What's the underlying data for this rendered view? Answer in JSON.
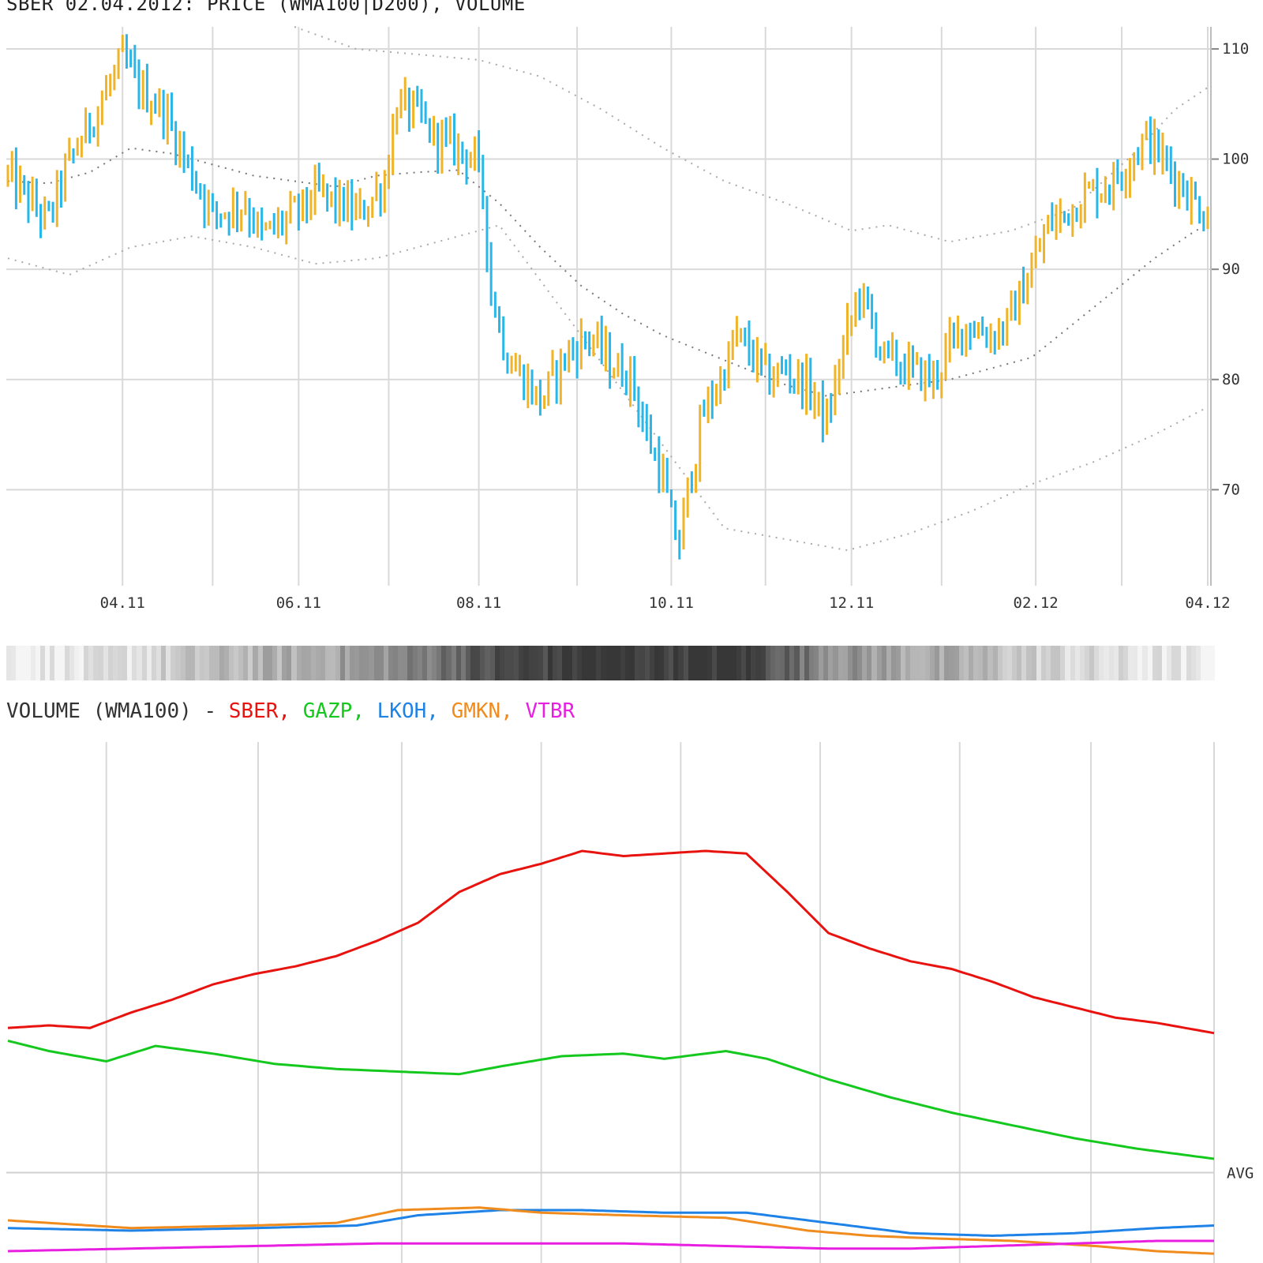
{
  "chart_title": "SBER 02.04.2012: PRICE (WMA100|D200), VOLUME",
  "chart_data": [
    {
      "type": "bar",
      "name": "price",
      "ylim": [
        61,
        111
      ],
      "y_ticks": [
        70,
        80,
        90,
        100,
        110
      ],
      "y_tick_labels": [
        "70",
        "80",
        "90",
        "100",
        "110"
      ],
      "x_tick_labels": [
        "04.11",
        "06.11",
        "08.11",
        "10.11",
        "12.11",
        "02.12",
        "04.12"
      ],
      "x_tick_index": [
        28,
        71,
        115,
        162,
        206,
        251,
        293
      ],
      "x_minor_index": [
        50,
        93,
        139,
        185,
        228,
        272
      ],
      "n_bars": 294,
      "grid": true,
      "up_color": "#f0b429",
      "down_color": "#29b6e8",
      "price_path": [
        [
          0,
          98.5
        ],
        [
          8,
          95
        ],
        [
          10,
          94.5
        ],
        [
          14,
          99
        ],
        [
          28,
          109
        ],
        [
          33,
          106
        ],
        [
          38,
          104.5
        ],
        [
          42,
          101
        ],
        [
          46,
          98
        ],
        [
          50,
          95
        ],
        [
          58,
          96
        ],
        [
          62,
          93
        ],
        [
          70,
          95
        ],
        [
          76,
          97
        ],
        [
          80,
          96
        ],
        [
          86,
          95
        ],
        [
          92,
          98
        ],
        [
          95,
          105
        ],
        [
          100,
          104
        ],
        [
          104,
          102
        ],
        [
          110,
          101
        ],
        [
          114,
          100
        ],
        [
          116,
          97
        ],
        [
          118,
          88
        ],
        [
          122,
          82
        ],
        [
          130,
          78
        ],
        [
          136,
          82
        ],
        [
          142,
          84
        ],
        [
          148,
          81
        ],
        [
          152,
          80.5
        ],
        [
          156,
          75
        ],
        [
          160,
          71
        ],
        [
          162,
          67
        ],
        [
          164,
          65
        ],
        [
          166,
          70
        ],
        [
          170,
          77
        ],
        [
          174,
          80
        ],
        [
          178,
          84
        ],
        [
          182,
          82
        ],
        [
          186,
          80
        ],
        [
          190,
          81
        ],
        [
          196,
          79
        ],
        [
          200,
          76
        ],
        [
          204,
          83
        ],
        [
          208,
          88
        ],
        [
          214,
          82
        ],
        [
          220,
          81
        ],
        [
          226,
          80
        ],
        [
          230,
          83
        ],
        [
          234,
          85
        ],
        [
          240,
          84
        ],
        [
          244,
          85
        ],
        [
          250,
          90
        ],
        [
          254,
          94
        ],
        [
          258,
          95
        ],
        [
          264,
          97
        ],
        [
          270,
          98
        ],
        [
          274,
          100
        ],
        [
          278,
          102
        ],
        [
          282,
          100
        ],
        [
          286,
          98
        ],
        [
          290,
          96
        ],
        [
          293,
          95
        ]
      ],
      "series": [
        {
          "values": [
            [
              0,
              98.0
            ],
            [
              10,
              97.8
            ],
            [
              20,
              98.8
            ],
            [
              30,
              101.0
            ],
            [
              40,
              100.5
            ],
            [
              50,
              99.5
            ],
            [
              60,
              98.5
            ],
            [
              70,
              98.0
            ],
            [
              80,
              97.5
            ],
            [
              90,
              98.5
            ],
            [
              100,
              98.8
            ],
            [
              110,
              99.0
            ],
            [
              120,
              96.0
            ],
            [
              130,
              92.0
            ],
            [
              140,
              88.5
            ],
            [
              150,
              86.0
            ],
            [
              160,
              84.0
            ],
            [
              170,
              82.5
            ],
            [
              180,
              81.0
            ],
            [
              190,
              79.5
            ],
            [
              200,
              78.5
            ],
            [
              210,
              79.0
            ],
            [
              220,
              79.5
            ],
            [
              230,
              80.0
            ],
            [
              240,
              81.0
            ],
            [
              250,
              82.0
            ],
            [
              260,
              85.0
            ],
            [
              270,
              88.0
            ],
            [
              280,
              91.0
            ],
            [
              290,
              93.5
            ],
            [
              293,
              94.0
            ]
          ]
        },
        {
          "values": [
            [
              0,
              91.0
            ],
            [
              15,
              89.5
            ],
            [
              30,
              92.0
            ],
            [
              45,
              93.0
            ],
            [
              60,
              92.0
            ],
            [
              75,
              90.5
            ],
            [
              90,
              91.0
            ],
            [
              105,
              92.5
            ],
            [
              120,
              94.0
            ],
            [
              140,
              84.0
            ],
            [
              160,
              74.0
            ],
            [
              175,
              66.5
            ],
            [
              190,
              65.5
            ],
            [
              205,
              64.5
            ],
            [
              220,
              66.0
            ],
            [
              235,
              68.0
            ],
            [
              250,
              70.5
            ],
            [
              265,
              72.5
            ],
            [
              280,
              75.0
            ],
            [
              293,
              77.5
            ]
          ]
        },
        {
          "values": [
            [
              70,
              112
            ],
            [
              85,
              110
            ],
            [
              100,
              109.5
            ],
            [
              115,
              109.0
            ],
            [
              130,
              107.5
            ],
            [
              145,
              104.5
            ],
            [
              160,
              101.0
            ],
            [
              175,
              98.0
            ],
            [
              190,
              96.0
            ],
            [
              206,
              93.5
            ],
            [
              215,
              94.0
            ],
            [
              230,
              92.5
            ],
            [
              245,
              93.5
            ],
            [
              260,
              95.5
            ],
            [
              275,
              100.5
            ],
            [
              285,
              104.5
            ],
            [
              293,
              106.5
            ]
          ]
        }
      ]
    },
    {
      "type": "line",
      "name": "volume",
      "title": "VOLUME (WMA100)",
      "ylim": [
        0,
        1
      ],
      "grid_x_index": [
        24,
        61,
        96,
        130,
        164,
        198,
        232,
        264,
        294
      ],
      "avg_label": "AVG",
      "avg_level": 0.173,
      "series": [
        {
          "name": "SBER",
          "color": "#e8130f",
          "values": [
            [
              0,
              0.455
            ],
            [
              10,
              0.46
            ],
            [
              20,
              0.455
            ],
            [
              30,
              0.485
            ],
            [
              40,
              0.51
            ],
            [
              50,
              0.54
            ],
            [
              60,
              0.56
            ],
            [
              70,
              0.575
            ],
            [
              80,
              0.595
            ],
            [
              90,
              0.625
            ],
            [
              100,
              0.66
            ],
            [
              110,
              0.72
            ],
            [
              120,
              0.755
            ],
            [
              130,
              0.775
            ],
            [
              140,
              0.8
            ],
            [
              150,
              0.79
            ],
            [
              160,
              0.795
            ],
            [
              170,
              0.8
            ],
            [
              180,
              0.795
            ],
            [
              190,
              0.72
            ],
            [
              200,
              0.64
            ],
            [
              210,
              0.61
            ],
            [
              220,
              0.585
            ],
            [
              230,
              0.57
            ],
            [
              240,
              0.545
            ],
            [
              250,
              0.515
            ],
            [
              260,
              0.495
            ],
            [
              270,
              0.475
            ],
            [
              280,
              0.465
            ],
            [
              294,
              0.445
            ]
          ]
        },
        {
          "name": "GAZP",
          "color": "#14c81e",
          "values": [
            [
              0,
              0.43
            ],
            [
              10,
              0.41
            ],
            [
              24,
              0.39
            ],
            [
              36,
              0.42
            ],
            [
              50,
              0.405
            ],
            [
              65,
              0.385
            ],
            [
              80,
              0.375
            ],
            [
              95,
              0.37
            ],
            [
              110,
              0.365
            ],
            [
              120,
              0.38
            ],
            [
              135,
              0.4
            ],
            [
              150,
              0.405
            ],
            [
              160,
              0.395
            ],
            [
              175,
              0.41
            ],
            [
              185,
              0.395
            ],
            [
              200,
              0.355
            ],
            [
              215,
              0.32
            ],
            [
              230,
              0.29
            ],
            [
              245,
              0.265
            ],
            [
              260,
              0.24
            ],
            [
              275,
              0.22
            ],
            [
              294,
              0.2
            ]
          ]
        },
        {
          "name": "LKOH",
          "color": "#1e82e6",
          "values": [
            [
              0,
              0.065
            ],
            [
              30,
              0.06
            ],
            [
              60,
              0.065
            ],
            [
              85,
              0.07
            ],
            [
              100,
              0.09
            ],
            [
              120,
              0.1
            ],
            [
              140,
              0.1
            ],
            [
              160,
              0.095
            ],
            [
              180,
              0.095
            ],
            [
              200,
              0.075
            ],
            [
              220,
              0.055
            ],
            [
              240,
              0.05
            ],
            [
              260,
              0.055
            ],
            [
              280,
              0.065
            ],
            [
              294,
              0.07
            ]
          ]
        },
        {
          "name": "GMKN",
          "color": "#f08c1e",
          "values": [
            [
              0,
              0.08
            ],
            [
              30,
              0.065
            ],
            [
              60,
              0.07
            ],
            [
              80,
              0.075
            ],
            [
              95,
              0.1
            ],
            [
              115,
              0.105
            ],
            [
              130,
              0.095
            ],
            [
              150,
              0.09
            ],
            [
              175,
              0.085
            ],
            [
              195,
              0.06
            ],
            [
              210,
              0.05
            ],
            [
              225,
              0.045
            ],
            [
              245,
              0.04
            ],
            [
              265,
              0.03
            ],
            [
              280,
              0.02
            ],
            [
              294,
              0.015
            ]
          ]
        },
        {
          "name": "VTBR",
          "color": "#e81ee0",
          "values": [
            [
              0,
              0.02
            ],
            [
              30,
              0.025
            ],
            [
              60,
              0.03
            ],
            [
              90,
              0.035
            ],
            [
              120,
              0.035
            ],
            [
              150,
              0.035
            ],
            [
              175,
              0.03
            ],
            [
              200,
              0.025
            ],
            [
              220,
              0.025
            ],
            [
              240,
              0.03
            ],
            [
              260,
              0.035
            ],
            [
              280,
              0.04
            ],
            [
              294,
              0.04
            ]
          ]
        }
      ]
    }
  ]
}
